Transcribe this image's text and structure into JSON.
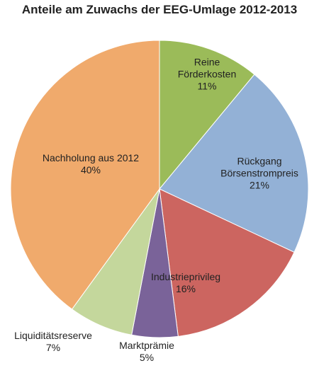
{
  "chart_data": {
    "type": "pie",
    "title": "Anteile am Zuwachs der EEG-Umlage 2012-2013",
    "categories": [
      "Reine Förderkosten",
      "Rückgang Börsenstrompreis",
      "Industrieprivileg",
      "Marktprämie",
      "Liquiditätsreserve",
      "Nachholung aus 2012"
    ],
    "values": [
      11,
      21,
      16,
      5,
      7,
      40
    ],
    "value_labels": [
      "11%",
      "21%",
      "16%",
      "5%",
      "7%",
      "40%"
    ],
    "colors": [
      "#9bbb59",
      "#93b1d6",
      "#cc6560",
      "#7a6399",
      "#c4d79c",
      "#f0aa6c"
    ]
  }
}
